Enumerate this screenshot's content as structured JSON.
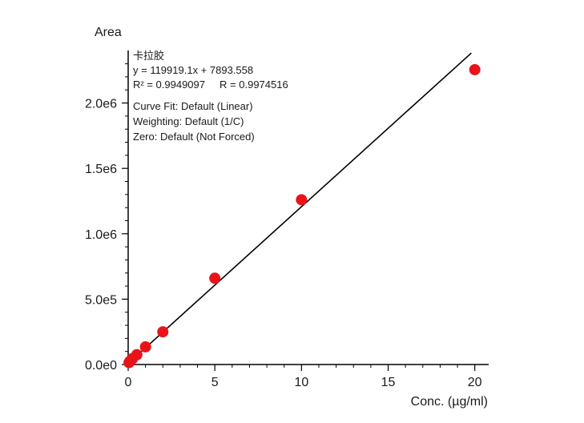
{
  "chart_data": {
    "type": "scatter",
    "ylabel": "Area",
    "xlabel": "Conc. (µg/ml)",
    "xlim": [
      0,
      20.8
    ],
    "ylim": [
      0,
      2460000.0
    ],
    "x_ticks": [
      0,
      5,
      10,
      15,
      20
    ],
    "x_tick_labels": [
      "0",
      "5",
      "10",
      "15",
      "20"
    ],
    "y_ticks": [
      0,
      500000,
      1000000,
      1500000,
      2000000
    ],
    "y_tick_labels": [
      "0.0e0",
      "5.0e5",
      "1.0e6",
      "1.5e6",
      "2.0e6"
    ],
    "series": [
      {
        "x": [
          0.05,
          0.1,
          0.25,
          0.5,
          1,
          2,
          5,
          10,
          20
        ],
        "y": [
          15000,
          25000,
          45000,
          75000,
          135000,
          250000,
          660000,
          1260000,
          2255000
        ],
        "color": "#e8141a"
      }
    ],
    "fit_line": {
      "slope": 119919.1,
      "intercept": 7893.558,
      "x_range": [
        0,
        19.8
      ],
      "color": "#000000"
    },
    "annotations": [
      "卡拉胶",
      "y = 119919.1x + 7893.558",
      "R² = 0.9949097     R = 0.9974516",
      "Curve Fit: Default (Linear)",
      "Weighting: Default (1/C)",
      "Zero: Default (Not Forced)"
    ],
    "grid": false,
    "legend": "none"
  }
}
